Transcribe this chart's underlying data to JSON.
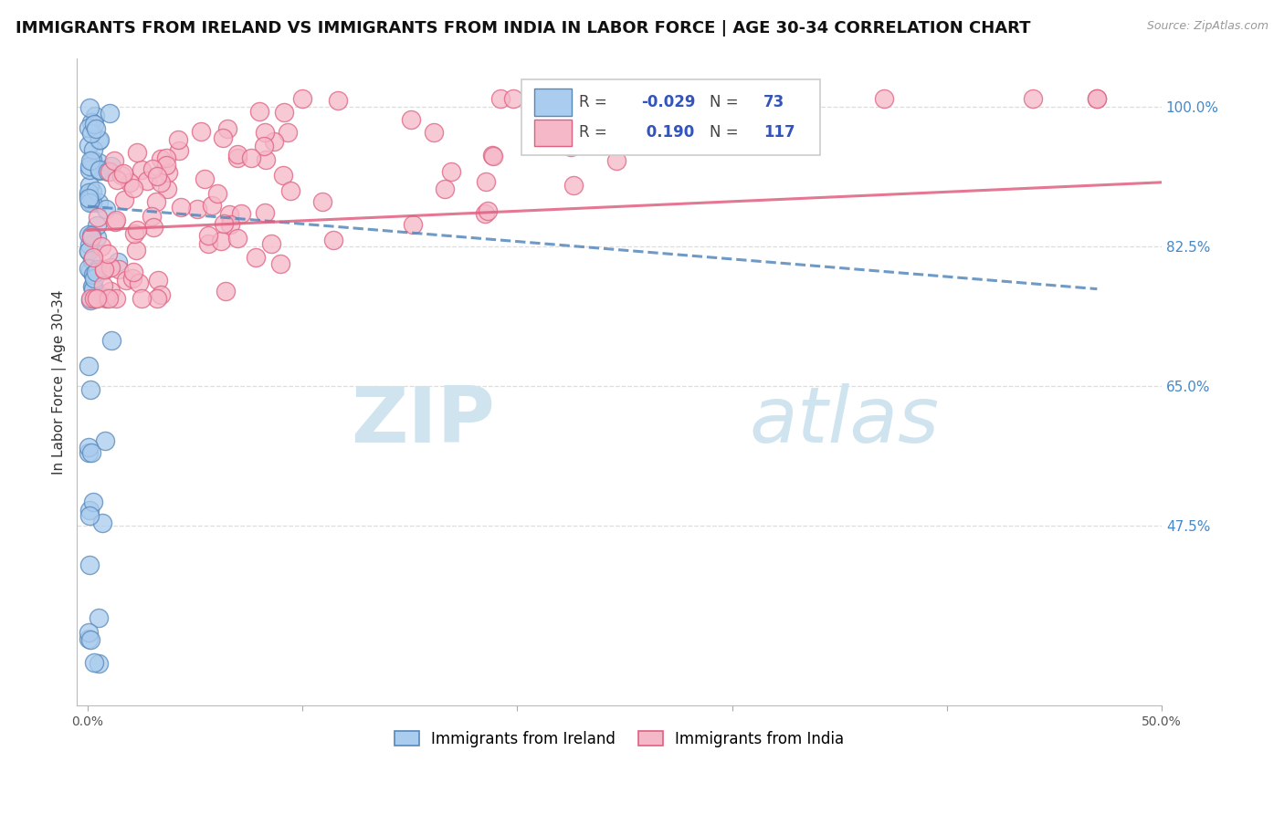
{
  "title": "IMMIGRANTS FROM IRELAND VS IMMIGRANTS FROM INDIA IN LABOR FORCE | AGE 30-34 CORRELATION CHART",
  "source": "Source: ZipAtlas.com",
  "ylabel": "In Labor Force | Age 30-34",
  "xlim": [
    -0.005,
    0.5
  ],
  "ylim": [
    0.25,
    1.06
  ],
  "xtick_positions": [
    0.0,
    0.1,
    0.2,
    0.3,
    0.4,
    0.5
  ],
  "xticklabels": [
    "0.0%",
    "",
    "",
    "",
    "",
    "50.0%"
  ],
  "yticks_right": [
    1.0,
    0.825,
    0.65,
    0.475
  ],
  "ytick_labels_right": [
    "100.0%",
    "82.5%",
    "65.0%",
    "47.5%"
  ],
  "ireland_R": -0.029,
  "ireland_N": 73,
  "india_R": 0.19,
  "india_N": 117,
  "ireland_fill_color": "#aaccee",
  "ireland_edge_color": "#5588bb",
  "india_fill_color": "#f5b8c8",
  "india_edge_color": "#e06080",
  "ireland_line_color": "#5588bb",
  "india_line_color": "#e06080",
  "background_color": "#ffffff",
  "grid_color": "#dddddd",
  "title_fontsize": 13,
  "axis_label_fontsize": 11,
  "tick_fontsize": 10,
  "watermark_color": "#d0e4f0",
  "legend_box_color": "#f8f8f8",
  "legend_edge_color": "#cccccc",
  "r_n_color": "#3355bb",
  "label_color": "#444444",
  "ireland_line_intercept": 0.875,
  "ireland_line_slope": -0.22,
  "india_line_intercept": 0.845,
  "india_line_slope": 0.12
}
